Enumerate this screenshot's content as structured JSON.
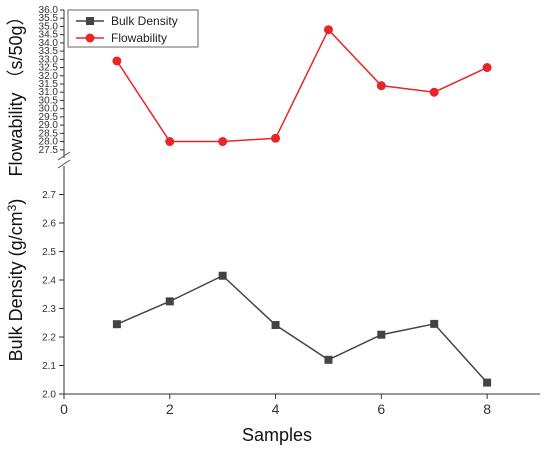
{
  "chart_data": {
    "type": "line",
    "xlabel": "Samples",
    "x_ticks": [
      "0",
      "2",
      "4",
      "6",
      "8"
    ],
    "xlim": [
      0,
      9
    ],
    "legend_position": "top-left",
    "colors": {
      "bulk": "#444444",
      "flow": "#e8262a"
    },
    "series": [
      {
        "name": "Bulk Density",
        "panel": "bottom",
        "marker": "square",
        "x": [
          1,
          2,
          3,
          4,
          5,
          6,
          7,
          8
        ],
        "values": [
          2.245,
          2.325,
          2.415,
          2.242,
          2.12,
          2.208,
          2.246,
          2.04
        ]
      },
      {
        "name": "Flowability",
        "panel": "top",
        "marker": "circle",
        "x": [
          1,
          2,
          3,
          4,
          5,
          6,
          7,
          8
        ],
        "values": [
          32.9,
          28.0,
          28.0,
          28.2,
          34.8,
          31.4,
          31.0,
          32.5
        ]
      }
    ],
    "bottom_axis": {
      "ylabel_main": "Bulk Density (g/cm",
      "ylabel_sup": "3",
      "ylabel_end": ")",
      "ylim": [
        2.0,
        2.8
      ],
      "ticks": [
        "2.0",
        "2.1",
        "2.2",
        "2.3",
        "2.4",
        "2.5",
        "2.6",
        "2.7"
      ]
    },
    "top_axis": {
      "ylabel": "Flowability （s/50g）",
      "ylim": [
        27.0,
        36.0
      ],
      "ticks": [
        "27.5",
        "28.0",
        "28.5",
        "29.0",
        "29.5",
        "30.0",
        "30.5",
        "31.0",
        "31.5",
        "32.0",
        "32.5",
        "33.0",
        "33.5",
        "34.0",
        "34.5",
        "35.0",
        "35.5",
        "36.0"
      ]
    }
  }
}
